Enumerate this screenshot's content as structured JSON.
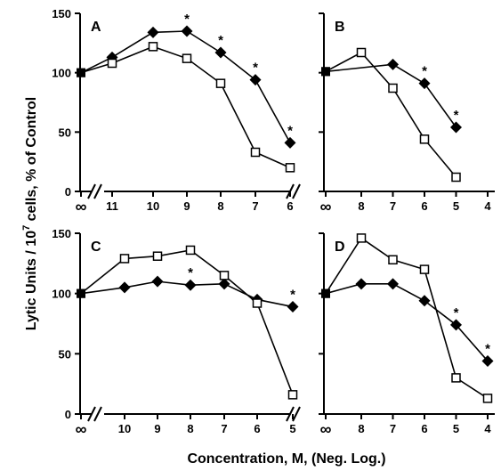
{
  "figure": {
    "ylabel_main": "Lytic Units / 10",
    "ylabel_sup": "7",
    "ylabel_tail": " cells, % of Control",
    "xlabel": "Concentration, M, (Neg. Log.)"
  },
  "chart_data": [
    {
      "type": "line",
      "panel": "A",
      "x_ticks": [
        "∞",
        "11",
        "10",
        "9",
        "8",
        "7",
        "6"
      ],
      "y_ticks": [
        "0",
        "50",
        "100",
        "150"
      ],
      "ylim": [
        0,
        150
      ],
      "legend": "none",
      "grid": false,
      "series": [
        {
          "marker": "filled-diamond",
          "x": [
            "∞",
            "11",
            "10",
            "9",
            "8",
            "7",
            "6"
          ],
          "values": [
            100,
            113,
            134,
            135,
            117,
            94,
            41
          ]
        },
        {
          "marker": "open-square",
          "x": [
            "∞",
            "11",
            "10",
            "9",
            "8",
            "7",
            "6"
          ],
          "values": [
            100,
            108,
            122,
            112,
            91,
            33,
            20
          ]
        }
      ],
      "annotations": [
        {
          "text": "*",
          "x": "9",
          "y": 135
        },
        {
          "text": "*",
          "x": "8",
          "y": 117
        },
        {
          "text": "*",
          "x": "7",
          "y": 94
        },
        {
          "text": "*",
          "x": "6",
          "y": 41
        }
      ]
    },
    {
      "type": "line",
      "panel": "B",
      "x_ticks": [
        "∞",
        "8",
        "7",
        "6",
        "5",
        "4"
      ],
      "y_ticks": [
        "0",
        "50",
        "100",
        "150"
      ],
      "ylim": [
        0,
        150
      ],
      "legend": "none",
      "grid": false,
      "series": [
        {
          "marker": "filled-diamond",
          "x": [
            "∞",
            "7",
            "6",
            "5"
          ],
          "values": [
            101,
            107,
            91,
            54
          ]
        },
        {
          "marker": "open-square",
          "x": [
            "∞",
            "8",
            "7",
            "6",
            "5"
          ],
          "values": [
            101,
            117,
            87,
            44,
            12
          ]
        }
      ],
      "annotations": [
        {
          "text": "*",
          "x": "6",
          "y": 91
        },
        {
          "text": "*",
          "x": "5",
          "y": 54
        }
      ]
    },
    {
      "type": "line",
      "panel": "C",
      "x_ticks": [
        "∞",
        "10",
        "9",
        "8",
        "7",
        "6",
        "5"
      ],
      "y_ticks": [
        "0",
        "50",
        "100",
        "150"
      ],
      "ylim": [
        0,
        150
      ],
      "legend": "none",
      "grid": false,
      "series": [
        {
          "marker": "filled-diamond",
          "x": [
            "∞",
            "10",
            "9",
            "8",
            "7",
            "6",
            "5"
          ],
          "values": [
            100,
            105,
            110,
            107,
            108,
            95,
            89
          ]
        },
        {
          "marker": "open-square",
          "x": [
            "∞",
            "10",
            "9",
            "8",
            "7",
            "6",
            "5"
          ],
          "values": [
            100,
            129,
            131,
            136,
            115,
            92,
            16
          ]
        }
      ],
      "annotations": [
        {
          "text": "*",
          "x": "8",
          "y": 107
        },
        {
          "text": "*",
          "x": "5",
          "y": 89
        }
      ]
    },
    {
      "type": "line",
      "panel": "D",
      "x_ticks": [
        "∞",
        "8",
        "7",
        "6",
        "5",
        "4"
      ],
      "y_ticks": [
        "0",
        "50",
        "100",
        "150"
      ],
      "ylim": [
        0,
        150
      ],
      "legend": "none",
      "grid": false,
      "series": [
        {
          "marker": "filled-diamond",
          "x": [
            "∞",
            "8",
            "7",
            "6",
            "5",
            "4"
          ],
          "values": [
            100,
            108,
            108,
            94,
            74,
            44
          ]
        },
        {
          "marker": "open-square",
          "x": [
            "∞",
            "8",
            "7",
            "6",
            "5",
            "4"
          ],
          "values": [
            100,
            146,
            128,
            120,
            30,
            13
          ]
        }
      ],
      "annotations": [
        {
          "text": "*",
          "x": "5",
          "y": 74
        },
        {
          "text": "*",
          "x": "4",
          "y": 44
        }
      ]
    }
  ]
}
